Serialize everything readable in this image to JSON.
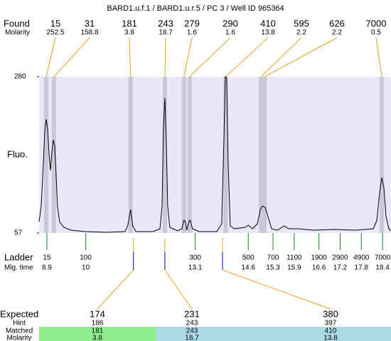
{
  "chart_data": {
    "type": "electropherogram",
    "title": "BARD1.u.f.1 / BARD1.u.r.5 / PC 3 / Well ID 965364",
    "ylabel": "Fluo.",
    "ylim": [
      57,
      280
    ],
    "yticks": [
      57,
      280
    ],
    "xlim": [
      8.68,
      18.64
    ],
    "trace": {
      "color": "#000000",
      "x": [
        8.68,
        8.74,
        8.8,
        8.84,
        8.88,
        8.92,
        8.96,
        9.0,
        9.04,
        9.08,
        9.12,
        9.16,
        9.2,
        9.26,
        9.38,
        9.58,
        9.99,
        10.59,
        11.11,
        11.19,
        11.27,
        11.33,
        11.42,
        11.9,
        12.1,
        12.16,
        12.2,
        12.24,
        12.28,
        12.32,
        12.38,
        12.6,
        12.72,
        12.78,
        12.82,
        12.86,
        12.92,
        12.96,
        13.02,
        13.21,
        13.71,
        13.85,
        13.91,
        13.95,
        13.99,
        14.03,
        14.09,
        14.21,
        14.51,
        14.61,
        14.72,
        14.86,
        14.94,
        15.0,
        15.08,
        15.16,
        15.26,
        15.42,
        15.62,
        15.74,
        16.02,
        16.43,
        17.03,
        17.63,
        18.14,
        18.24,
        18.32,
        18.38,
        18.44,
        18.5,
        18.58,
        18.64
      ],
      "values": [
        73.2,
        95.5,
        156.3,
        202.0,
        219.2,
        207.0,
        171.5,
        146.2,
        171.5,
        189.8,
        181.7,
        141.1,
        95.5,
        73.2,
        65.1,
        61.1,
        59.0,
        58.0,
        59.0,
        67.1,
        90.4,
        67.1,
        59.0,
        59.0,
        63.1,
        95.5,
        207.0,
        249.6,
        186.7,
        95.5,
        65.1,
        60.0,
        63.1,
        75.2,
        73.2,
        61.1,
        73.2,
        75.2,
        63.1,
        59.0,
        59.0,
        70.2,
        186.7,
        280.0,
        278.0,
        156.3,
        67.1,
        63.1,
        65.1,
        68.2,
        63.1,
        70.2,
        90.4,
        95.5,
        93.4,
        80.3,
        63.1,
        61.1,
        67.1,
        63.1,
        63.1,
        61.1,
        62.1,
        61.1,
        63.1,
        75.2,
        115.8,
        136.1,
        120.9,
        80.3,
        63.1,
        60.0
      ]
    },
    "found": {
      "label": "Found",
      "molarity_label": "Molarity",
      "sizes": [
        15,
        31,
        181,
        243,
        279,
        290,
        410,
        595,
        626,
        7000
      ],
      "molarity": [
        252.5,
        158.8,
        3.8,
        18.7,
        1.6,
        1.6,
        13.8,
        2.2,
        2.2,
        0.5
      ],
      "x": [
        8.88,
        9.1,
        11.27,
        12.24,
        12.78,
        12.94,
        13.96,
        14.96,
        15.06,
        18.38
      ]
    },
    "ladder": {
      "label": "Ladder",
      "time_label": "Mig. time",
      "sizes": [
        15,
        100,
        300,
        500,
        700,
        1100,
        1900,
        2900,
        4900,
        7000
      ],
      "times": [
        8.9,
        10,
        13.1,
        14.6,
        15.3,
        15.9,
        16.6,
        17.2,
        17.8,
        18.4
      ]
    },
    "expected": {
      "label": "Expected",
      "hint_label": "Hint",
      "matched_label": "Matched",
      "molarity_label": "Molarity",
      "sizes": [
        174,
        231,
        380
      ],
      "x": [
        11.35,
        12.24,
        13.87
      ],
      "hint": [
        186,
        243,
        397
      ],
      "matched": [
        181,
        243,
        410
      ],
      "molarity": [
        3.8,
        18.7,
        13.8
      ],
      "colors": [
        "#90ee90",
        "#add8e6",
        "#add8e6"
      ]
    }
  }
}
